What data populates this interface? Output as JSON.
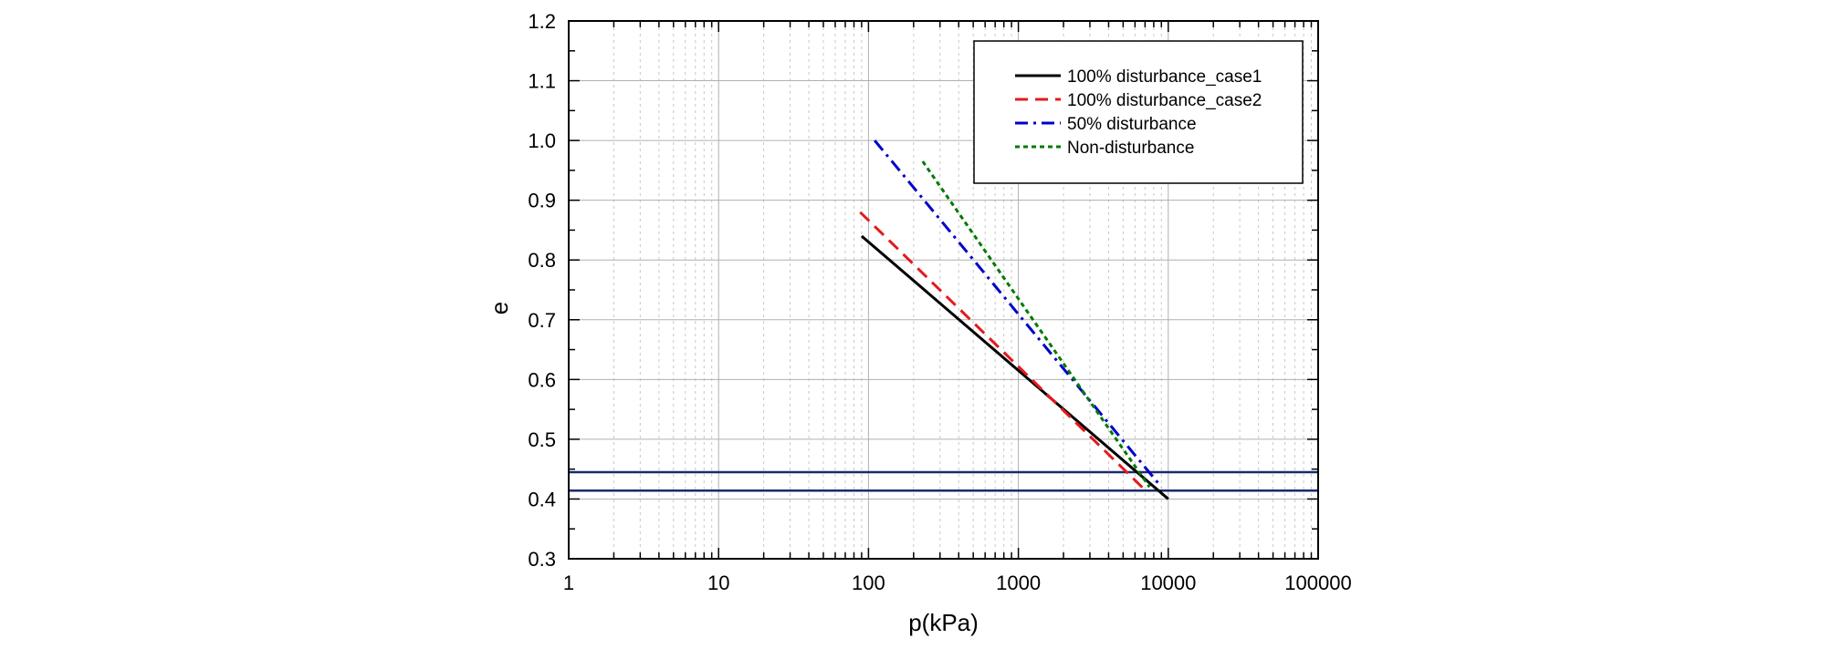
{
  "chart_data": {
    "type": "line",
    "title": "",
    "xlabel": "p(kPa)",
    "ylabel": "e",
    "x_scale": "log",
    "xlim": [
      1,
      100000
    ],
    "ylim": [
      0.3,
      1.2
    ],
    "x_ticks": [
      "1",
      "10",
      "100",
      "1000",
      "10000",
      "100000"
    ],
    "y_ticks": [
      "0.3",
      "0.4",
      "0.5",
      "0.6",
      "0.7",
      "0.8",
      "0.9",
      "1.0",
      "1.1",
      "1.2"
    ],
    "grid": true,
    "legend_position": "top-right",
    "series": [
      {
        "name": "100% disturbance_case1",
        "color": "#000000",
        "dash": "solid",
        "x": [
          90,
          10000
        ],
        "y": [
          0.84,
          0.4
        ]
      },
      {
        "name": "100% disturbance_case2",
        "color": "#e41a1c",
        "dash": "dashed",
        "x": [
          88,
          7000
        ],
        "y": [
          0.88,
          0.415
        ]
      },
      {
        "name": "50% disturbance",
        "color": "#0000cc",
        "dash": "dashdot",
        "x": [
          110,
          9000
        ],
        "y": [
          1.0,
          0.42
        ]
      },
      {
        "name": "Non-disturbance",
        "color": "#007a00",
        "dash": "dotted",
        "x": [
          230,
          7500
        ],
        "y": [
          0.965,
          0.42
        ]
      }
    ],
    "reference_lines": [
      {
        "orientation": "horizontal",
        "y": 0.445,
        "color": "#1a2a6c"
      },
      {
        "orientation": "horizontal",
        "y": 0.414,
        "color": "#1a2a6c"
      }
    ]
  }
}
